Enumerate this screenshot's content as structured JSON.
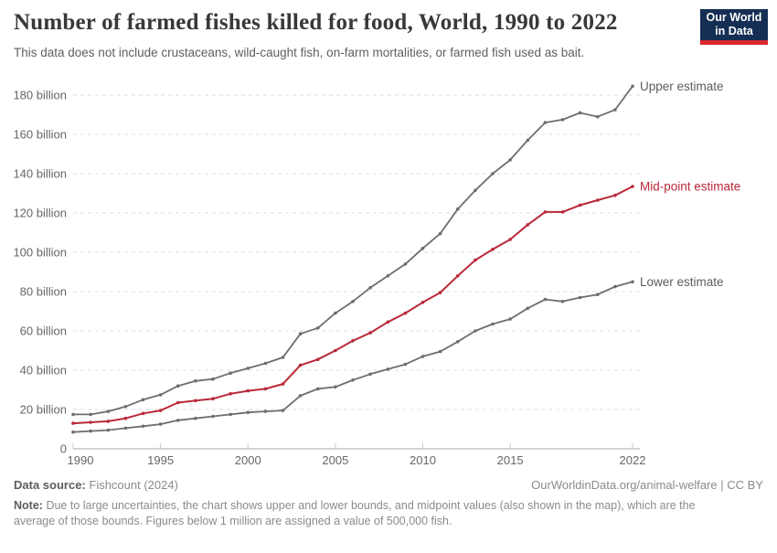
{
  "header": {
    "title": "Number of farmed fishes killed for food, World, 1990 to 2022",
    "subtitle": "This data does not include crustaceans, wild-caught fish, on-farm mortalities, or farmed fish used as bait.",
    "logo": {
      "line1": "Our World",
      "line2": "in Data"
    }
  },
  "chart_data": {
    "type": "line",
    "title": "Number of farmed fishes killed for food, World, 1990 to 2022",
    "xlabel": "",
    "ylabel": "",
    "unit": "billion fish",
    "x": [
      1990,
      1991,
      1992,
      1993,
      1994,
      1995,
      1996,
      1997,
      1998,
      1999,
      2000,
      2001,
      2002,
      2003,
      2004,
      2005,
      2006,
      2007,
      2008,
      2009,
      2010,
      2011,
      2012,
      2013,
      2014,
      2015,
      2016,
      2017,
      2018,
      2019,
      2020,
      2021,
      2022
    ],
    "series": [
      {
        "name": "Upper estimate",
        "color": "#6e6e6e",
        "label_color": "#5d5d5d",
        "values": [
          17.5,
          17.5,
          19,
          21.5,
          25,
          27.5,
          32,
          34.5,
          35.5,
          38.5,
          41,
          43.5,
          46.5,
          58.5,
          61.5,
          69,
          75,
          82,
          88,
          94,
          102,
          109.5,
          122,
          131.5,
          140,
          147,
          157,
          166,
          167.5,
          171,
          169,
          172.5,
          184.5
        ]
      },
      {
        "name": "Lower estimate",
        "color": "#6e6e6e",
        "label_color": "#5d5d5d",
        "values": [
          8.5,
          9,
          9.5,
          10.5,
          11.5,
          12.5,
          14.5,
          15.5,
          16.5,
          17.5,
          18.5,
          19,
          19.5,
          27,
          30.5,
          31.5,
          35,
          38,
          40.5,
          43,
          47,
          49.5,
          54.5,
          60,
          63.5,
          66,
          71.5,
          76,
          75,
          77,
          78.5,
          82.5,
          85
        ]
      },
      {
        "name": "Mid-point estimate",
        "color": "#b9293a",
        "label_color": "#b9293a",
        "values": [
          13,
          13.5,
          14,
          15.5,
          18,
          19.5,
          23.5,
          24.5,
          25.5,
          28,
          29.5,
          30.5,
          33,
          42.5,
          45.5,
          50,
          55,
          59,
          64.5,
          69,
          74.5,
          79.5,
          88,
          96,
          101.5,
          106.5,
          114,
          120.5,
          120.5,
          124,
          126.5,
          129,
          133.5
        ]
      }
    ],
    "yticks": [
      0,
      20,
      40,
      60,
      80,
      100,
      120,
      140,
      160,
      180
    ],
    "ytick_suffix": " billion",
    "xticks": [
      1990,
      1995,
      2000,
      2005,
      2010,
      2015,
      2022
    ],
    "ylim": [
      0,
      190
    ],
    "xlim": [
      1990,
      2022
    ],
    "grid": "horizontal-dashed",
    "legend_position": "line-end-labels"
  },
  "footer": {
    "source_label": "Data source:",
    "source_value": "Fishcount (2024)",
    "link": "OurWorldinData.org/animal-welfare | CC BY",
    "note_label": "Note:",
    "note_value": "Due to large uncertainties, the chart shows upper and lower bounds, and midpoint values (also shown in the map), which are the average of those bounds. Figures below 1 million are assigned a value of 500,000 fish."
  },
  "colors": {
    "accent_red": "#b9293a",
    "line_gray": "#6e6e6e",
    "grid_gray": "#dcdcdc",
    "axis_gray": "#a8a8a8",
    "tick_text": "#666666",
    "logo_navy": "#152e54",
    "logo_red": "#d7282f"
  }
}
